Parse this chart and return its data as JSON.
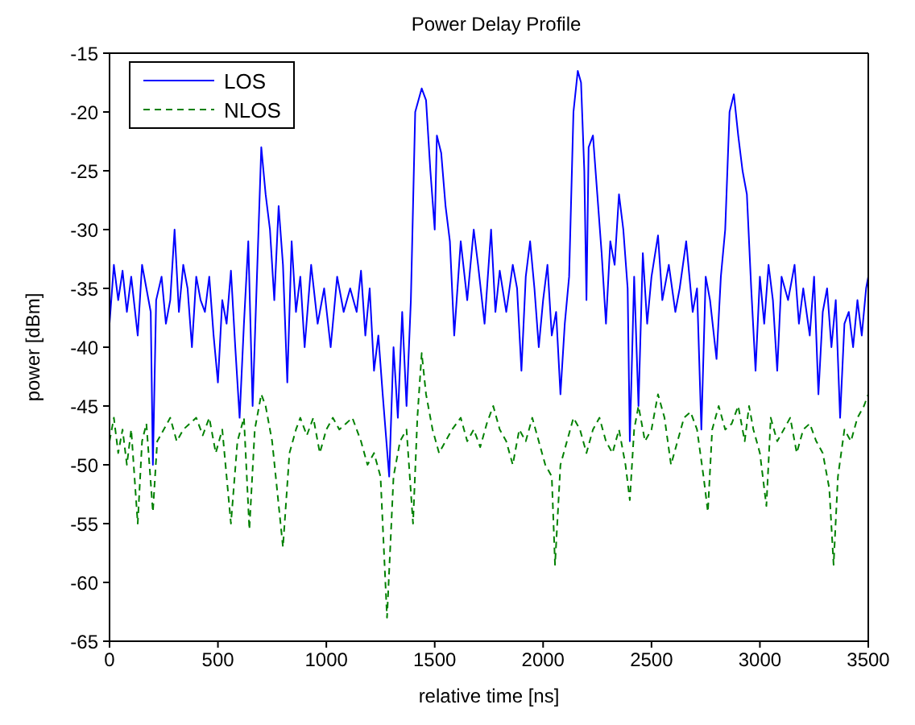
{
  "chart_data": {
    "type": "line",
    "title": "Power Delay Profile",
    "xlabel": "relative time [ns]",
    "ylabel": "power [dBm]",
    "xlim": [
      0,
      3500
    ],
    "xticks": [
      0,
      500,
      1000,
      1500,
      2000,
      2500,
      3000,
      3500
    ],
    "ylim": [
      -65,
      -15
    ],
    "yticks": [
      -65,
      -60,
      -55,
      -50,
      -45,
      -40,
      -35,
      -30,
      -25,
      -20,
      -15
    ],
    "grid": false,
    "legend": "top left",
    "marker": "none",
    "series": [
      {
        "name": "LOS",
        "color": "#0000ff",
        "line_style": "solid",
        "x": [
          0,
          20,
          40,
          60,
          80,
          100,
          130,
          150,
          170,
          190,
          200,
          215,
          240,
          260,
          280,
          300,
          320,
          340,
          360,
          380,
          400,
          420,
          440,
          460,
          480,
          500,
          520,
          540,
          560,
          580,
          600,
          620,
          640,
          660,
          680,
          700,
          720,
          740,
          760,
          780,
          800,
          820,
          840,
          860,
          880,
          900,
          930,
          960,
          990,
          1020,
          1050,
          1080,
          1110,
          1140,
          1160,
          1180,
          1200,
          1220,
          1240,
          1260,
          1290,
          1310,
          1330,
          1350,
          1370,
          1390,
          1410,
          1440,
          1460,
          1480,
          1500,
          1510,
          1530,
          1550,
          1570,
          1590,
          1620,
          1650,
          1680,
          1700,
          1730,
          1760,
          1780,
          1800,
          1830,
          1860,
          1880,
          1900,
          1920,
          1940,
          1960,
          1980,
          2000,
          2020,
          2040,
          2060,
          2080,
          2100,
          2120,
          2140,
          2160,
          2175,
          2190,
          2200,
          2210,
          2230,
          2250,
          2270,
          2290,
          2310,
          2330,
          2350,
          2370,
          2390,
          2400,
          2420,
          2440,
          2460,
          2480,
          2500,
          2530,
          2550,
          2580,
          2610,
          2630,
          2660,
          2690,
          2710,
          2730,
          2750,
          2770,
          2800,
          2820,
          2840,
          2860,
          2880,
          2900,
          2920,
          2940,
          2960,
          2980,
          3000,
          3020,
          3040,
          3060,
          3080,
          3100,
          3130,
          3160,
          3180,
          3200,
          3230,
          3250,
          3270,
          3290,
          3310,
          3330,
          3350,
          3370,
          3390,
          3410,
          3430,
          3450,
          3470,
          3490,
          3500
        ],
        "values": [
          -38,
          -33,
          -36,
          -33.5,
          -37,
          -34,
          -39,
          -33,
          -35,
          -37,
          -50,
          -36,
          -34,
          -38,
          -36,
          -30,
          -37,
          -33,
          -35,
          -40,
          -34,
          -36,
          -37,
          -34,
          -39,
          -43,
          -36,
          -38,
          -33.5,
          -40,
          -46,
          -38,
          -31,
          -45,
          -34,
          -23,
          -27,
          -30,
          -36,
          -28,
          -33,
          -43,
          -31,
          -37,
          -34,
          -40,
          -33,
          -38,
          -35,
          -40,
          -34,
          -37,
          -35,
          -37,
          -33.5,
          -39,
          -35,
          -42,
          -39,
          -44,
          -51,
          -40,
          -46,
          -37,
          -45,
          -36,
          -20,
          -18,
          -19,
          -25,
          -30,
          -22,
          -23.5,
          -28,
          -31,
          -39,
          -31,
          -36,
          -30,
          -33,
          -38,
          -30,
          -37,
          -33.5,
          -37,
          -33,
          -35,
          -42,
          -34,
          -31,
          -35,
          -40,
          -36,
          -33,
          -39,
          -37,
          -44,
          -38,
          -34,
          -20,
          -16.5,
          -17.5,
          -25,
          -36,
          -23,
          -22,
          -27,
          -32,
          -38,
          -31,
          -33,
          -27,
          -30,
          -35,
          -48,
          -34,
          -45,
          -32,
          -38,
          -34,
          -30.5,
          -36,
          -33,
          -37,
          -35,
          -31,
          -37,
          -35,
          -47,
          -34,
          -36,
          -41,
          -34,
          -30,
          -20,
          -18.5,
          -22,
          -25,
          -27,
          -35,
          -42,
          -34,
          -38,
          -33,
          -36,
          -42,
          -34,
          -36,
          -33,
          -38,
          -35,
          -39,
          -34,
          -44,
          -37,
          -35,
          -40,
          -36,
          -46,
          -38,
          -37,
          -40,
          -36,
          -39,
          -35,
          -34
        ]
      },
      {
        "name": "NLOS",
        "color": "#008000",
        "line_style": "dashed",
        "x": [
          0,
          20,
          40,
          60,
          80,
          100,
          130,
          150,
          170,
          200,
          220,
          250,
          280,
          310,
          340,
          370,
          400,
          430,
          460,
          490,
          520,
          560,
          590,
          620,
          645,
          670,
          700,
          720,
          750,
          800,
          830,
          860,
          880,
          910,
          940,
          970,
          1000,
          1030,
          1060,
          1090,
          1120,
          1160,
          1190,
          1220,
          1250,
          1280,
          1310,
          1340,
          1370,
          1400,
          1420,
          1440,
          1460,
          1490,
          1520,
          1550,
          1580,
          1620,
          1650,
          1680,
          1710,
          1740,
          1770,
          1800,
          1830,
          1860,
          1890,
          1920,
          1950,
          1980,
          2010,
          2040,
          2055,
          2080,
          2110,
          2140,
          2170,
          2200,
          2230,
          2260,
          2290,
          2320,
          2350,
          2380,
          2400,
          2420,
          2440,
          2470,
          2500,
          2530,
          2560,
          2590,
          2620,
          2650,
          2680,
          2710,
          2740,
          2760,
          2780,
          2810,
          2840,
          2870,
          2900,
          2930,
          2950,
          2970,
          3000,
          3030,
          3050,
          3080,
          3110,
          3140,
          3170,
          3200,
          3230,
          3260,
          3290,
          3320,
          3340,
          3360,
          3390,
          3420,
          3450,
          3480,
          3500
        ],
        "values": [
          -48,
          -46,
          -49,
          -47,
          -50,
          -47,
          -55,
          -48,
          -46.5,
          -54,
          -48,
          -47,
          -46,
          -48,
          -47,
          -46.5,
          -46,
          -47.5,
          -46,
          -49,
          -47,
          -55,
          -48,
          -46,
          -55.5,
          -47,
          -44,
          -45,
          -48,
          -57,
          -49,
          -47,
          -46,
          -47.5,
          -46,
          -49,
          -47,
          -46,
          -47,
          -46.5,
          -46,
          -48,
          -50,
          -49,
          -51,
          -63,
          -51,
          -48,
          -47,
          -55,
          -46,
          -40.5,
          -44,
          -47,
          -49,
          -48,
          -47,
          -46,
          -48,
          -47,
          -48.5,
          -46.5,
          -45,
          -47,
          -48,
          -50,
          -47,
          -48,
          -46,
          -48,
          -50,
          -51,
          -58.5,
          -50,
          -48,
          -46,
          -47,
          -49,
          -47,
          -46,
          -48,
          -49,
          -47,
          -50,
          -53,
          -47,
          -45,
          -48,
          -47,
          -44,
          -46,
          -50,
          -48,
          -46,
          -45.5,
          -47,
          -51,
          -54,
          -47,
          -45,
          -47,
          -46.5,
          -45,
          -48,
          -45,
          -47,
          -49,
          -53.5,
          -46,
          -48,
          -47,
          -46,
          -49,
          -47,
          -46.5,
          -48,
          -49,
          -52,
          -58.5,
          -51,
          -47,
          -48,
          -46,
          -45,
          -44
        ]
      }
    ]
  }
}
